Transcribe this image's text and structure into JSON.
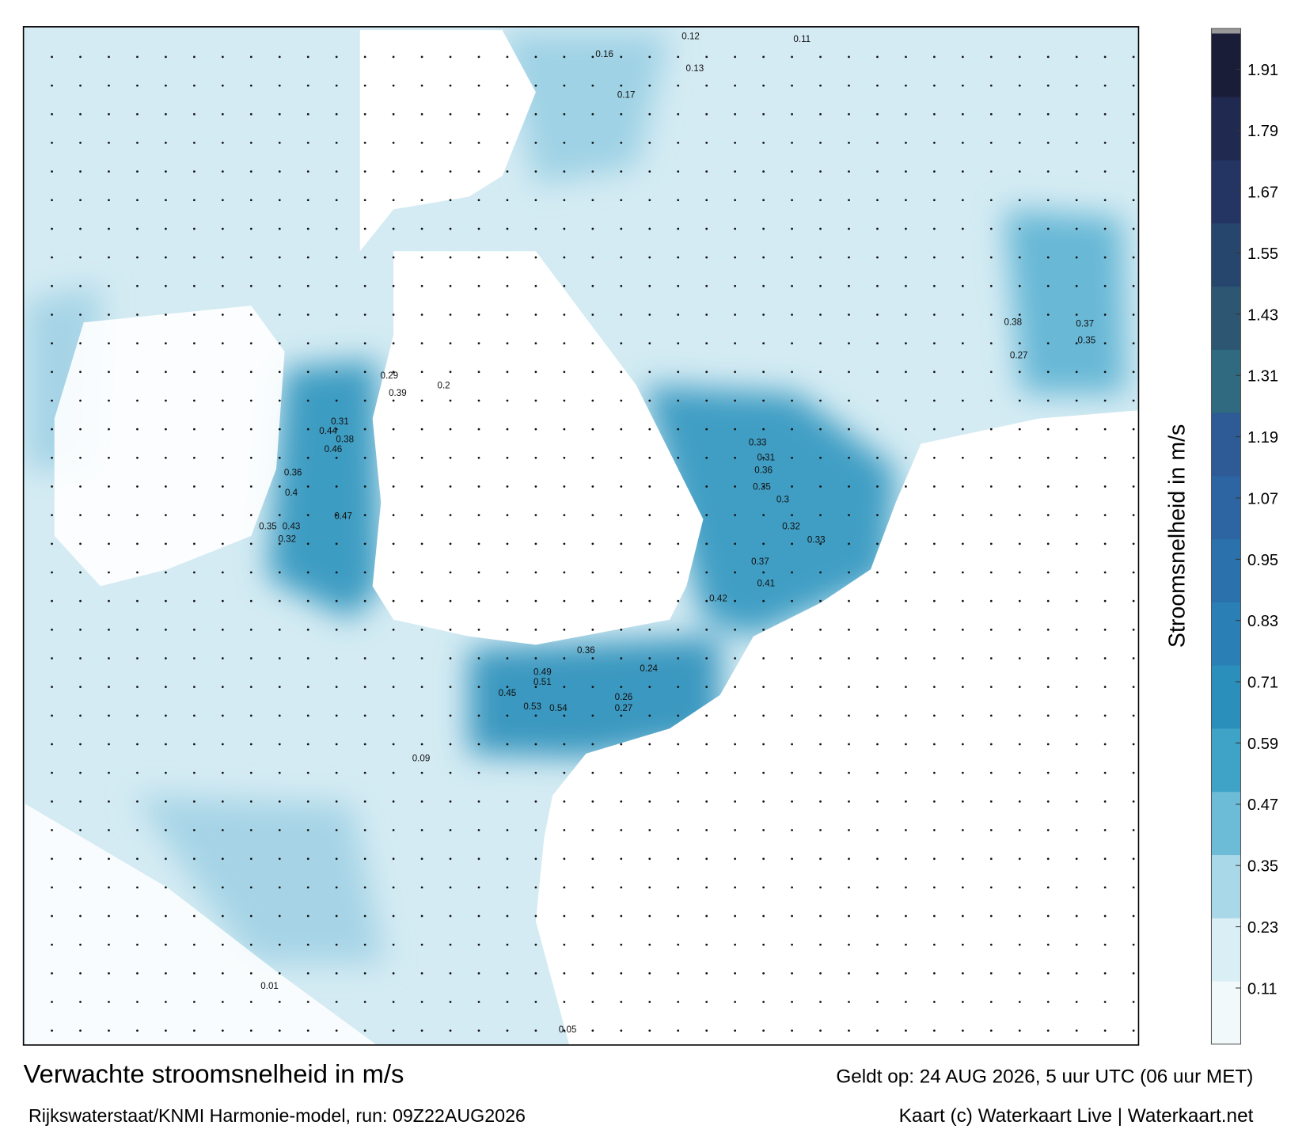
{
  "title": "Verwachte stroomsnelheid in m/s",
  "subtitle": "Rijkswaterstaat/KNMI Harmonie-model, run: 09Z22AUG2026",
  "valid_time": "Geldt op: 24 AUG 2026, 5 uur UTC (06 uur MET)",
  "credit": "Kaart (c) Waterkaart Live | Waterkaart.net",
  "colorbar": {
    "label": "Stroomsnelheid in m/s",
    "lim": [
      0,
      1.98
    ],
    "ticks": [
      0.11,
      0.23,
      0.35,
      0.47,
      0.59,
      0.71,
      0.83,
      0.95,
      1.07,
      1.19,
      1.31,
      1.43,
      1.55,
      1.67,
      1.79,
      1.91
    ],
    "colors": [
      "#f2f9fb",
      "#d9eef5",
      "#a9d8e8",
      "#6cbcd8",
      "#3ea3c7",
      "#2b8fbb",
      "#2a80b4",
      "#2b72ac",
      "#2d64a2",
      "#2e5a96",
      "#2f6a80",
      "#2c5672",
      "#27466d",
      "#243563",
      "#20294f",
      "#1a1d38"
    ]
  },
  "map_labels": [
    0.47,
    0.43,
    0.35,
    0.32,
    0.36,
    0.4,
    0.46,
    0.38,
    0.44,
    0.31,
    0.39,
    0.29,
    0.2,
    0.49,
    0.51,
    0.53,
    0.54,
    0.45,
    0.36,
    0.26,
    0.27,
    0.24,
    0.33,
    0.31,
    0.36,
    0.35,
    0.3,
    0.42,
    0.41,
    0.37,
    0.32,
    0.33,
    0.38,
    0.37,
    0.35,
    0.27,
    0.12,
    0.11,
    0.13,
    0.16,
    0.17,
    0.05,
    0.01,
    0.09
  ]
}
